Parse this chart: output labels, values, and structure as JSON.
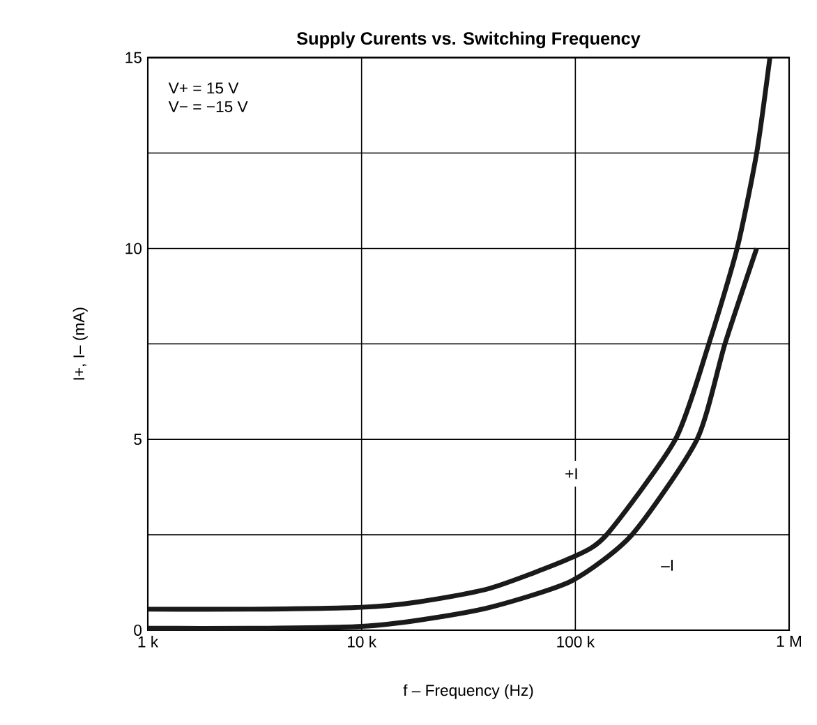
{
  "chart_data": {
    "type": "line",
    "title": "Supply Curents vs. Switching Frequency",
    "xlabel": "f – Frequency (Hz)",
    "ylabel": "I+, I– (mA)",
    "log": "x",
    "xlim": [
      1000,
      1000000
    ],
    "ylim": [
      0,
      15
    ],
    "xticks": [
      {
        "value": 1000,
        "label": "1 k"
      },
      {
        "value": 10000,
        "label": "10 k"
      },
      {
        "value": 100000,
        "label": "100 k"
      },
      {
        "value": 1000000,
        "label": "1 M"
      }
    ],
    "yticks": [
      0,
      {
        "value": 2.5,
        "label": null
      },
      5,
      {
        "value": 7.5,
        "label": null
      },
      10,
      {
        "value": 12.5,
        "label": null
      },
      15
    ],
    "grid": true,
    "line_style": "solid",
    "marker": "none",
    "series": [
      {
        "color": "#1a1a1a",
        "x": [
          1000,
          3000,
          10000,
          18400,
          40000,
          96000,
          140000,
          294000,
          421000,
          571000,
          705000,
          813000
        ],
        "values": [
          0.55,
          0.55,
          0.6,
          0.74,
          1.1,
          1.9,
          2.5,
          5.0,
          7.5,
          10.0,
          12.5,
          15.0
        ]
      },
      {
        "color": "#1a1a1a",
        "x": [
          1000,
          3000,
          10000,
          18400,
          40000,
          96000,
          184000,
          371000,
          501000,
          705000
        ],
        "values": [
          0.05,
          0.05,
          0.1,
          0.26,
          0.6,
          1.29,
          2.5,
          5.0,
          7.5,
          10.0
        ]
      }
    ],
    "annotations": [
      "V+ = 15 V",
      "V− = −15 V",
      {
        "text": "+I",
        "x": 96000,
        "y": 4.1
      },
      {
        "text": "–I",
        "x": 270000,
        "y": 1.7
      }
    ]
  }
}
